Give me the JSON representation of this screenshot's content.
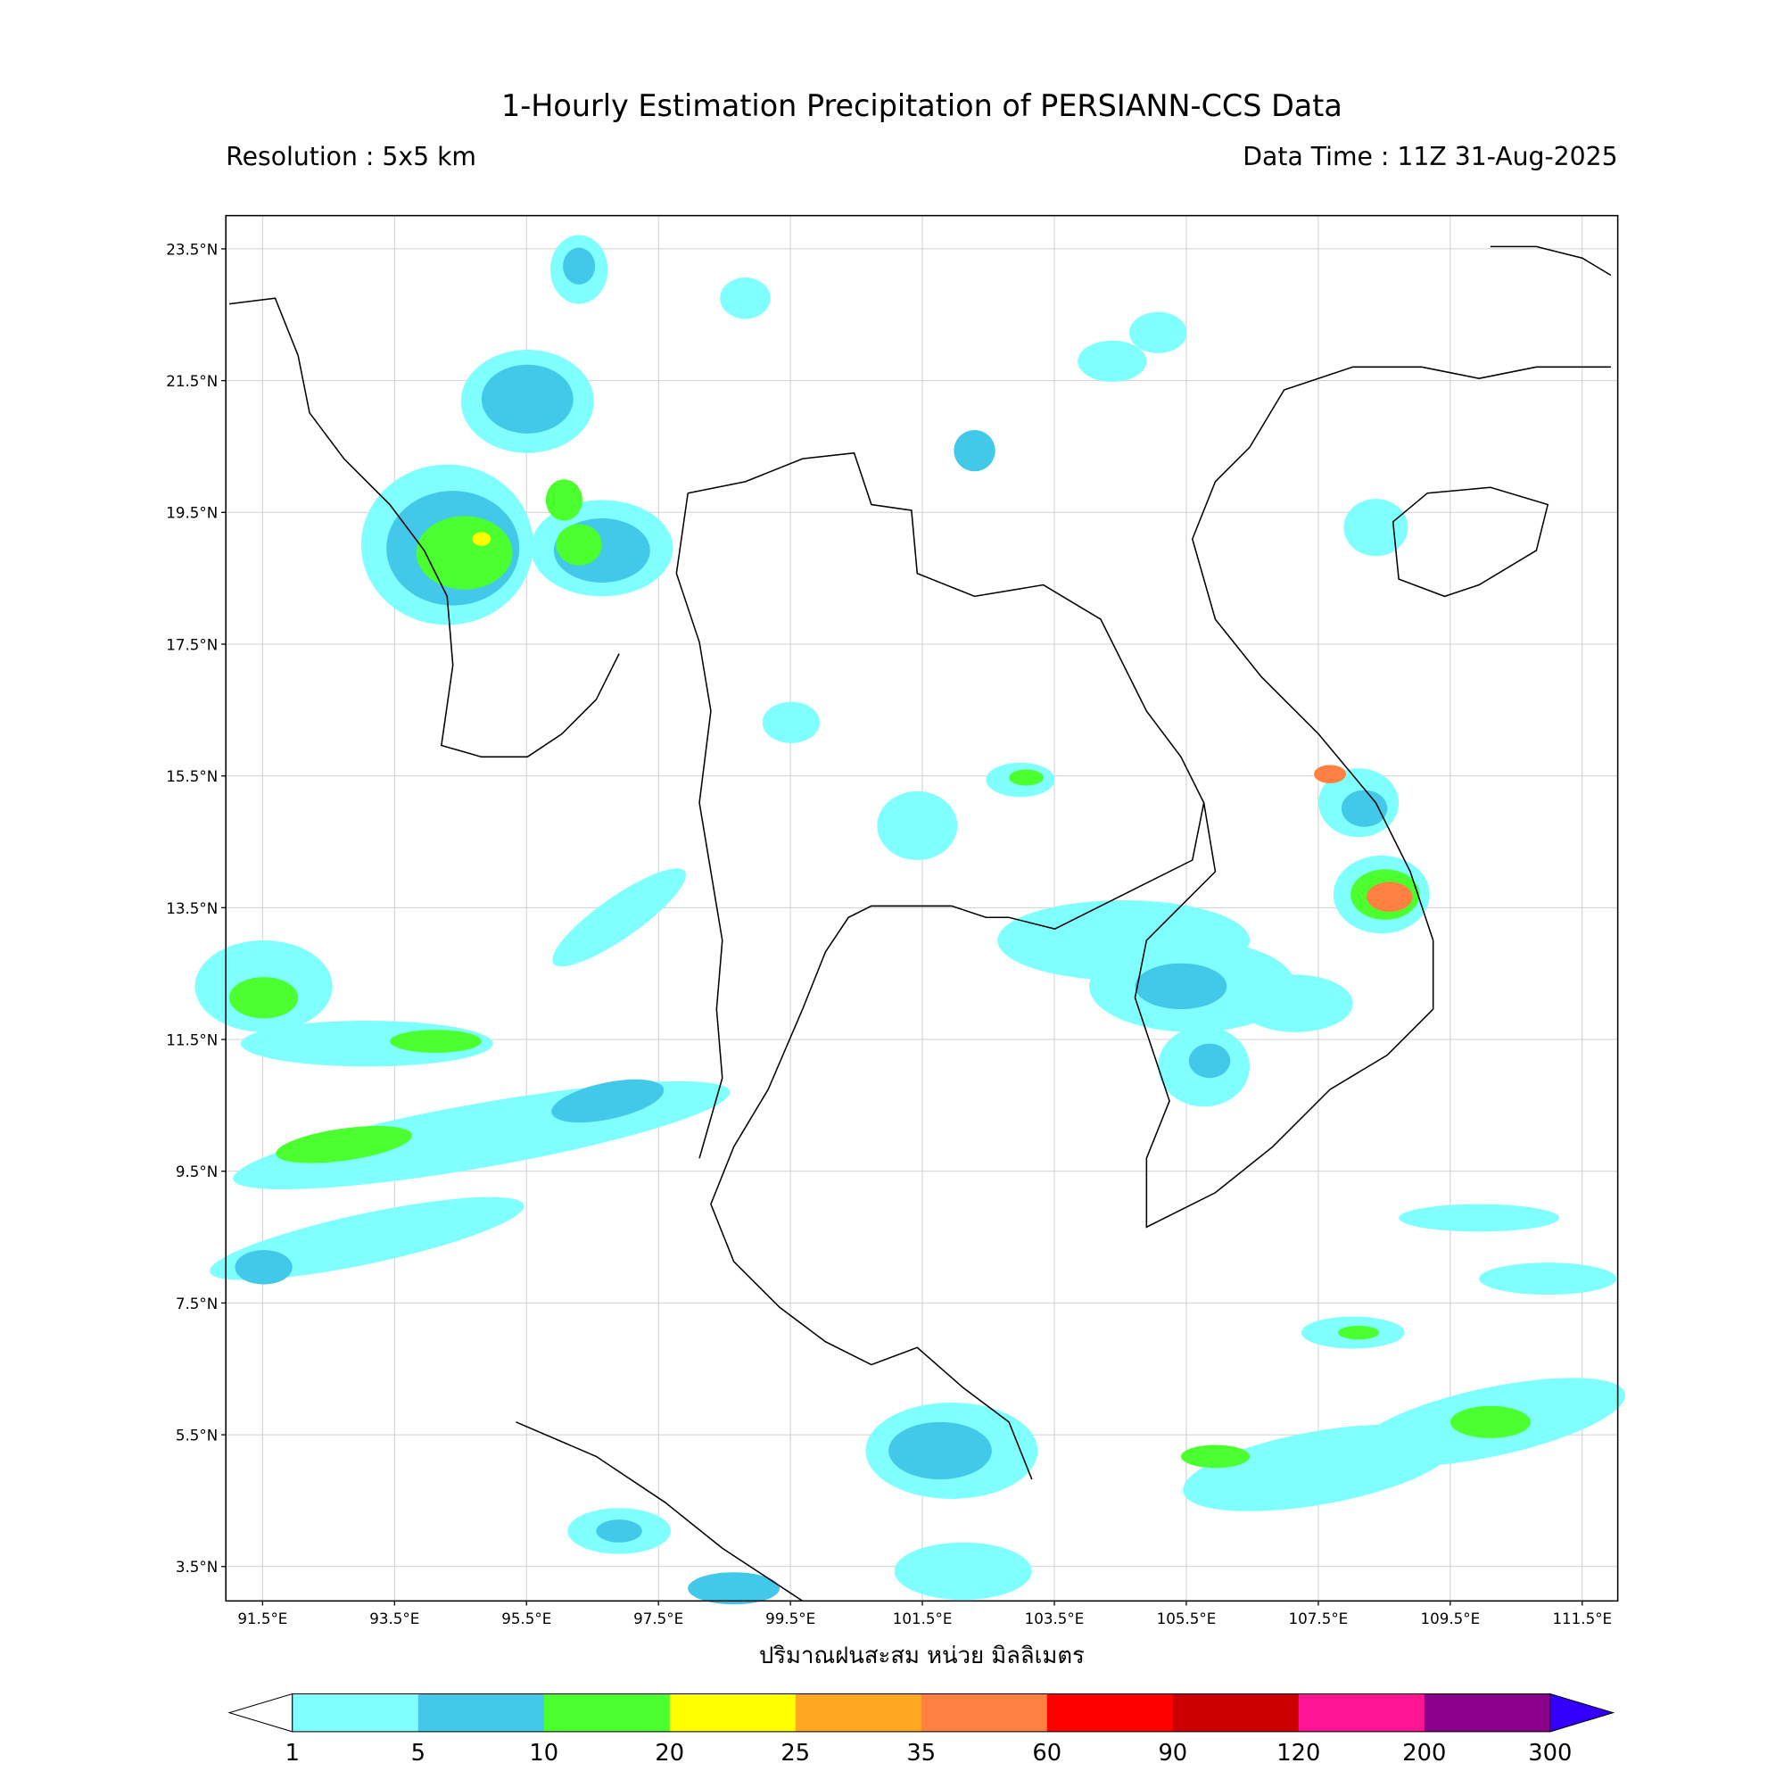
{
  "header": {
    "title": "1-Hourly Estimation Precipitation of PERSIANN-CCS Data",
    "resolution": "Resolution : 5x5 km",
    "data_time": "Data Time : 11Z 31-Aug-2025"
  },
  "map": {
    "lat_ticks": [
      "23.5°N",
      "21.5°N",
      "19.5°N",
      "17.5°N",
      "15.5°N",
      "13.5°N",
      "11.5°N",
      "9.5°N",
      "7.5°N",
      "5.5°N",
      "3.5°N"
    ],
    "lon_ticks": [
      "91.5°E",
      "93.5°E",
      "95.5°E",
      "97.5°E",
      "99.5°E",
      "101.5°E",
      "103.5°E",
      "105.5°E",
      "107.5°E",
      "109.5°E",
      "111.5°E"
    ],
    "axis_label": "ปริมาณฝนสะสม หน่วย มิลลิเมตร"
  },
  "colorbar": {
    "ticks": [
      1,
      5,
      10,
      20,
      25,
      35,
      60,
      90,
      120,
      200,
      300
    ],
    "colors": [
      "#80ffff",
      "#42c8e8",
      "#4cff2e",
      "#ffff00",
      "#ffa820",
      "#ff8040",
      "#ff0000",
      "#cc0000",
      "#ff1493",
      "#8b008b"
    ],
    "under_color": "#ffffff",
    "over_color": "#3300ff"
  }
}
